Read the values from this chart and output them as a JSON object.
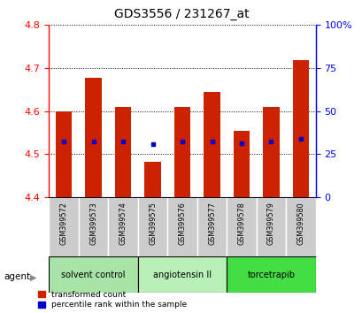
{
  "title": "GDS3556 / 231267_at",
  "samples": [
    "GSM399572",
    "GSM399573",
    "GSM399574",
    "GSM399575",
    "GSM399576",
    "GSM399577",
    "GSM399578",
    "GSM399579",
    "GSM399580"
  ],
  "red_values": [
    4.6,
    4.678,
    4.61,
    4.483,
    4.61,
    4.645,
    4.555,
    4.61,
    4.718
  ],
  "blue_values": [
    4.53,
    4.53,
    4.53,
    4.523,
    4.53,
    4.53,
    4.525,
    4.53,
    4.535
  ],
  "y_min": 4.4,
  "y_max": 4.8,
  "y_ticks": [
    4.4,
    4.5,
    4.6,
    4.7,
    4.8
  ],
  "right_y_ticks": [
    0,
    25,
    50,
    75,
    100
  ],
  "right_y_labels": [
    "0",
    "25",
    "50",
    "75",
    "100%"
  ],
  "groups": [
    {
      "label": "solvent control",
      "start": 0,
      "end": 3,
      "color": "#a8e4a8"
    },
    {
      "label": "angiotensin II",
      "start": 3,
      "end": 6,
      "color": "#b8f0b8"
    },
    {
      "label": "torcetrapib",
      "start": 6,
      "end": 9,
      "color": "#44dd44"
    }
  ],
  "bar_color": "#cc2200",
  "blue_color": "#0000cc",
  "bar_width": 0.55,
  "agent_label": "agent",
  "legend_items": [
    "transformed count",
    "percentile rank within the sample"
  ],
  "tick_label_color": "#c8c8c8",
  "title_fontsize": 10
}
